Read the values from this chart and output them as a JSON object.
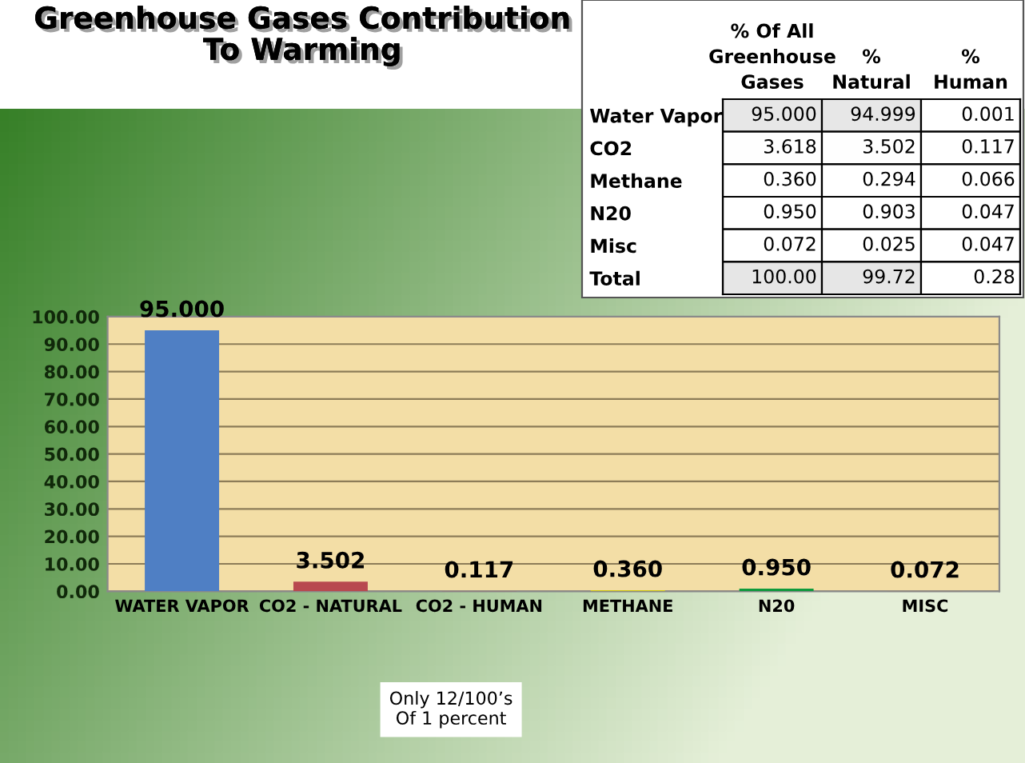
{
  "chart_data": [
    {
      "type": "bar",
      "categories": [
        "WATER VAPOR",
        "CO2 - NATURAL",
        "CO2 - HUMAN",
        "METHANE",
        "N20",
        "MISC"
      ],
      "values": [
        95.0,
        3.502,
        0.117,
        0.36,
        0.95,
        0.072
      ],
      "colors": [
        "#4f7fc4",
        "#b8484f",
        "#d40000",
        "#cfc812",
        "#0e9a3c",
        "#b0602c"
      ],
      "value_labels": [
        "95.000",
        "3.502",
        "0.117",
        "0.360",
        "0.950",
        "0.072"
      ],
      "ylim": [
        0,
        100
      ],
      "yticks": [
        {
          "value": 0,
          "label": "0.00"
        },
        {
          "value": 10,
          "label": "10.00"
        },
        {
          "value": 20,
          "label": "20.00"
        },
        {
          "value": 30,
          "label": "30.00"
        },
        {
          "value": 40,
          "label": "40.00"
        },
        {
          "value": 50,
          "label": "50.00"
        },
        {
          "value": 60,
          "label": "60.00"
        },
        {
          "value": 70,
          "label": "70.00"
        },
        {
          "value": 80,
          "label": "80.00"
        },
        {
          "value": 90,
          "label": "90.00"
        },
        {
          "value": 100,
          "label": "100.00"
        }
      ],
      "grid": "y",
      "annotations": [
        "Only 12/100’s\nOf 1 percent"
      ]
    },
    {
      "type": "heatmap",
      "title": "Greenhouse Gases Contribution\nTo Warming",
      "categories": [
        "% Of All\nGreenhouse\nGases",
        "%\nNatural",
        "%\nHuman"
      ],
      "y_categories": [
        "Water Vapor",
        "CO2",
        "Methane",
        "N20",
        "Misc",
        "Total"
      ],
      "cells": [
        [
          95.0,
          94.999,
          0.001
        ],
        [
          3.618,
          3.502,
          0.117
        ],
        [
          0.36,
          0.294,
          0.066
        ],
        [
          0.95,
          0.903,
          0.047
        ],
        [
          0.072,
          0.025,
          0.047
        ],
        [
          100.0,
          99.72,
          0.28
        ]
      ],
      "cell_labels": [
        [
          "95.000",
          "94.999",
          "0.001"
        ],
        [
          "3.618",
          "3.502",
          "0.117"
        ],
        [
          "0.360",
          "0.294",
          "0.066"
        ],
        [
          "0.950",
          "0.903",
          "0.047"
        ],
        [
          "0.072",
          "0.025",
          "0.047"
        ],
        [
          "100.00",
          "99.72",
          "0.28"
        ]
      ]
    }
  ]
}
